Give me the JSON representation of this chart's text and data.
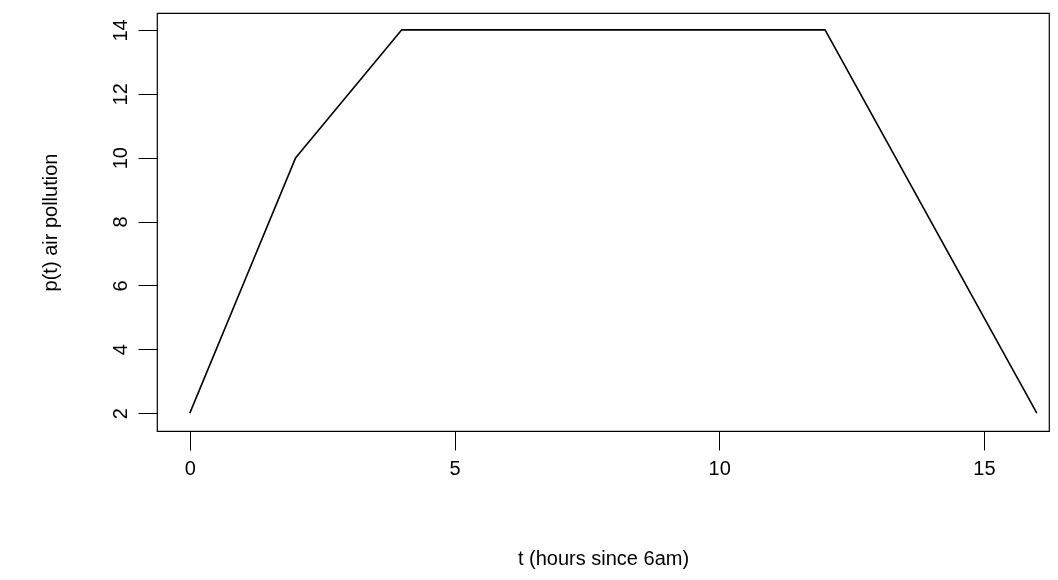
{
  "chart_data": {
    "type": "line",
    "xlabel": "t (hours since 6am)",
    "ylabel": "p(t) air pollution",
    "x": [
      0,
      2,
      4,
      12,
      16
    ],
    "series": [
      {
        "color": "#000000",
        "values": [
          2,
          10,
          14,
          14,
          2
        ]
      }
    ],
    "xlim": [
      -0.62,
      16.23
    ],
    "ylim": [
      1.44,
      14.53
    ],
    "xticks": [
      0,
      5,
      10,
      15
    ],
    "yticks": [
      2,
      4,
      6,
      8,
      10,
      12,
      14
    ],
    "grid": false,
    "marker": "none",
    "line_style": "solid"
  }
}
